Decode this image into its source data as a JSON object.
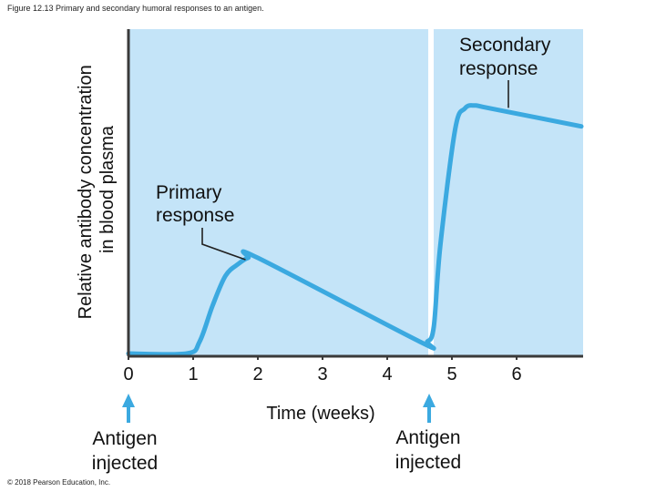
{
  "figure_title": "Figure 12.13 Primary and secondary humoral responses to an antigen.",
  "copyright": "© 2018 Pearson Education, Inc.",
  "colors": {
    "plot_bg": "#c4e4f8",
    "curve": "#3ba9e0",
    "axis": "#3a3a3a",
    "arrow": "#3ba9e0",
    "divider": "#ffffff"
  },
  "chart_data": {
    "type": "line",
    "title": "",
    "xlabel": "Time (weeks)",
    "ylabel_lines": [
      "Relative antibody concentration",
      "in blood plasma"
    ],
    "xlim": [
      0,
      7
    ],
    "ylim": [
      0,
      1
    ],
    "x_ticks": [
      0,
      1,
      2,
      3,
      4,
      5,
      6
    ],
    "grid": false,
    "series": [
      {
        "x": [
          0,
          0.9,
          1.1,
          1.3,
          1.5,
          1.7,
          1.85,
          2.0,
          4.5,
          4.62,
          4.72,
          4.82,
          5.05,
          5.2,
          5.35,
          5.6,
          7.0
        ],
        "y": [
          0.0,
          0.0,
          0.04,
          0.16,
          0.26,
          0.3,
          0.32,
          0.32,
          0.04,
          0.04,
          0.09,
          0.36,
          0.75,
          0.82,
          0.83,
          0.82,
          0.76
        ]
      }
    ],
    "antigen_injection_weeks": [
      0,
      4.62
    ],
    "annotations": [
      {
        "lines": [
          "Primary",
          "response"
        ],
        "points_to": [
          1.95,
          0.32
        ]
      },
      {
        "lines": [
          "Secondary",
          "response"
        ],
        "points_to": [
          5.45,
          0.825
        ]
      }
    ],
    "injection_label_lines": [
      "Antigen",
      "injected"
    ]
  }
}
